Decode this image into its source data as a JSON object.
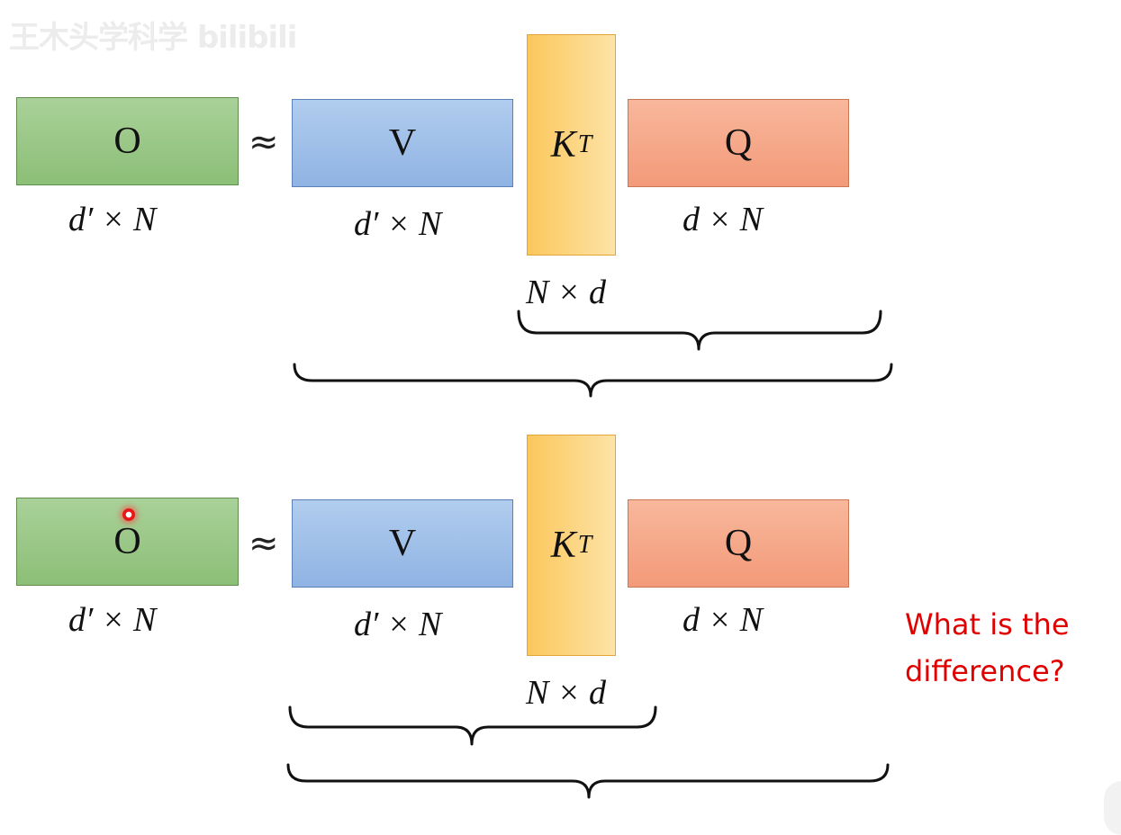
{
  "watermark": {
    "text": "王木头学科学 bilibili"
  },
  "diagrams": [
    {
      "o": {
        "label": "O",
        "dim": "d′ × N"
      },
      "approx": "≈",
      "v": {
        "label": "V",
        "dim": "d′ × N"
      },
      "kt": {
        "label": "K",
        "sup": "T",
        "dim": "N × d"
      },
      "q": {
        "label": "Q",
        "dim": "d × N"
      }
    },
    {
      "o": {
        "label": "O",
        "dim": "d′ × N"
      },
      "approx": "≈",
      "v": {
        "label": "V",
        "dim": "d′ × N"
      },
      "kt": {
        "label": "K",
        "sup": "T",
        "dim": "N × d"
      },
      "q": {
        "label": "Q",
        "dim": "d × N"
      }
    }
  ],
  "question": {
    "line1": "What is the",
    "line2": "difference?"
  },
  "colors": {
    "o": "#9bc888",
    "v": "#9fc0ea",
    "kt": "#fcd27c",
    "q": "#f5a887",
    "question": "#e00000"
  }
}
